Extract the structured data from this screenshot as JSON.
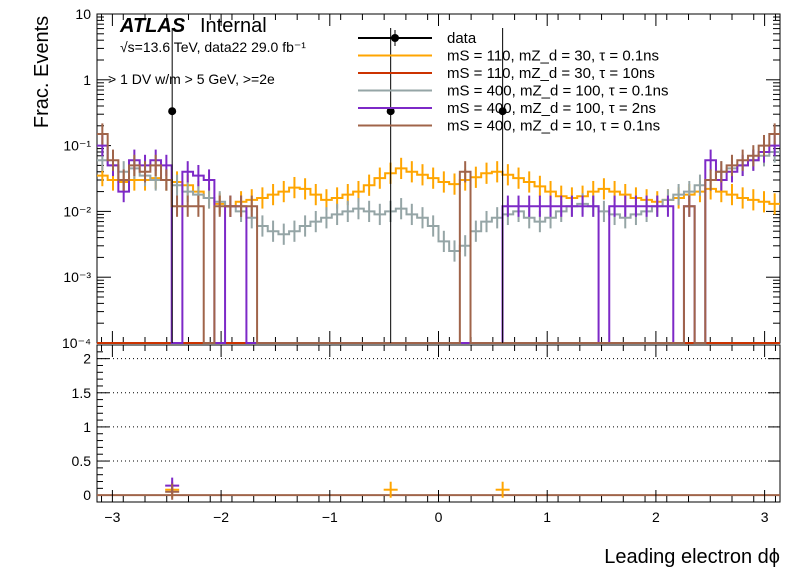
{
  "figure": {
    "brand_bold": "ATLAS",
    "brand_rest": "Internal",
    "energy_line": "√s=13.6 TeV, data22 29.0 fb⁻¹",
    "selection": "> 1 DV w/m > 5 GeV, >=2e",
    "ylabel": "Frac. Events",
    "xlabel": "Leading electron dϕ"
  },
  "legend": [
    {
      "label": "data",
      "color": "#000000",
      "marker": "dot"
    },
    {
      "label": "mS = 110, mZ_d = 30, τ = 0.1ns",
      "color": "#ffa500",
      "marker": "line"
    },
    {
      "label": "mS = 110, mZ_d = 30, τ = 10ns",
      "color": "#cc3300",
      "marker": "line"
    },
    {
      "label": "mS = 400, mZ_d = 100, τ = 0.1ns",
      "color": "#95a5a6",
      "marker": "line"
    },
    {
      "label": "mS = 400, mZ_d = 100, τ = 2ns",
      "color": "#7d29c7",
      "marker": "line"
    },
    {
      "label": "mS = 400, mZ_d = 10, τ = 0.1ns",
      "color": "#a0644a",
      "marker": "line"
    }
  ],
  "chart_data": [
    {
      "type": "line",
      "panel": "main",
      "xlim": [
        -3.14159,
        3.14159
      ],
      "ylim": [
        0.0001,
        10
      ],
      "yscale": "log",
      "ylabel": "Frac. Events",
      "y_ticks": [
        "10⁻⁴",
        "10⁻³",
        "10⁻²",
        "10⁻¹",
        "1",
        "10"
      ],
      "bins": 64,
      "data_points": [
        {
          "x": -2.45,
          "y": 0.333
        },
        {
          "x": -0.44,
          "y": 0.333
        },
        {
          "x": 0.59,
          "y": 0.333
        }
      ],
      "series": [
        {
          "name": "mS = 110, mZ_d = 30, τ = 0.1ns",
          "color": "#ffa500",
          "values": [
            0.035,
            0.03,
            0.028,
            0.03,
            0.03,
            0.032,
            0.03,
            0.028,
            0.025,
            0.02,
            0.016,
            0.013,
            0.012,
            0.014,
            0.015,
            0.016,
            0.018,
            0.02,
            0.023,
            0.022,
            0.018,
            0.015,
            0.016,
            0.018,
            0.02,
            0.025,
            0.032,
            0.038,
            0.045,
            0.04,
            0.036,
            0.032,
            0.028,
            0.026,
            0.03,
            0.033,
            0.038,
            0.04,
            0.036,
            0.032,
            0.028,
            0.024,
            0.02,
            0.017,
            0.016,
            0.017,
            0.02,
            0.022,
            0.02,
            0.018,
            0.016,
            0.015,
            0.014,
            0.015,
            0.016,
            0.018,
            0.02,
            0.022,
            0.02,
            0.018,
            0.016,
            0.015,
            0.014,
            0.013
          ]
        },
        {
          "name": "mS = 110, mZ_d = 30, τ = 10ns",
          "color": "#cc3300",
          "values": [
            0.0001,
            0.0001,
            0.0001,
            0.0001,
            0.0001,
            0.0001,
            0.0001,
            0.0001,
            0.0001,
            0.0001,
            0.0001,
            0.0001,
            0.0001,
            0.0001,
            0.0001,
            0.0001,
            0.0001,
            0.0001,
            0.0001,
            0.0001,
            0.0001,
            0.0001,
            0.0001,
            0.0001,
            0.0001,
            0.0001,
            0.0001,
            0.0001,
            0.0001,
            0.0001,
            0.0001,
            0.0001,
            0.0001,
            0.0001,
            0.0001,
            0.0001,
            0.0001,
            0.0001,
            0.0001,
            0.0001,
            0.0001,
            0.0001,
            0.0001,
            0.0001,
            0.0001,
            0.0001,
            0.0001,
            0.0001,
            0.0001,
            0.0001,
            0.0001,
            0.0001,
            0.0001,
            0.0001,
            0.0001,
            0.0001,
            0.0001,
            0.0001,
            0.0001,
            0.0001,
            0.0001,
            0.0001,
            0.0001,
            0.0001
          ]
        },
        {
          "name": "mS = 400, mZ_d = 100, τ = 0.1ns",
          "color": "#95a5a6",
          "values": [
            0.06,
            0.05,
            0.04,
            0.045,
            0.035,
            0.03,
            0.03,
            0.025,
            0.02,
            0.018,
            0.016,
            0.014,
            0.012,
            0.01,
            0.008,
            0.006,
            0.005,
            0.0045,
            0.005,
            0.006,
            0.007,
            0.008,
            0.009,
            0.01,
            0.011,
            0.01,
            0.009,
            0.01,
            0.011,
            0.009,
            0.008,
            0.006,
            0.0035,
            0.0025,
            0.003,
            0.005,
            0.007,
            0.008,
            0.009,
            0.01,
            0.008,
            0.007,
            0.008,
            0.01,
            0.012,
            0.013,
            0.012,
            0.01,
            0.009,
            0.008,
            0.009,
            0.01,
            0.012,
            0.015,
            0.018,
            0.02,
            0.025,
            0.03,
            0.04,
            0.045,
            0.05,
            0.06,
            0.07,
            0.08
          ]
        },
        {
          "name": "mS = 400, mZ_d = 100, τ = 2ns",
          "color": "#7d29c7",
          "values": [
            0.1,
            0.05,
            0.02,
            0.06,
            0.05,
            0.06,
            0.05,
            0.0001,
            0.04,
            0.035,
            0.03,
            0.0001,
            0.012,
            0.012,
            0.0001,
            0.0001,
            0.0001,
            0.0001,
            0.0001,
            0.0001,
            0.0001,
            0.0001,
            0.0001,
            0.0001,
            0.0001,
            0.0001,
            0.0001,
            0.0001,
            0.0001,
            0.0001,
            0.0001,
            0.0001,
            0.0001,
            0.0001,
            0.0001,
            0.0001,
            0.0001,
            0.0001,
            0.012,
            0.012,
            0.012,
            0.012,
            0.012,
            0.012,
            0.012,
            0.012,
            0.012,
            0.0001,
            0.012,
            0.012,
            0.012,
            0.012,
            0.012,
            0.012,
            0.0001,
            0.012,
            0.0001,
            0.06,
            0.03,
            0.04,
            0.05,
            0.06,
            0.08,
            0.1
          ]
        },
        {
          "name": "mS = 400, mZ_d = 10, τ = 0.1ns",
          "color": "#a0644a",
          "values": [
            0.15,
            0.06,
            0.03,
            0.05,
            0.04,
            0.05,
            0.03,
            0.012,
            0.012,
            0.012,
            0.0001,
            0.012,
            0.012,
            0.012,
            0.012,
            0.0001,
            0.0001,
            0.0001,
            0.0001,
            0.0001,
            0.0001,
            0.0001,
            0.0001,
            0.0001,
            0.0001,
            0.0001,
            0.0001,
            0.0001,
            0.0001,
            0.0001,
            0.0001,
            0.0001,
            0.0001,
            0.0001,
            0.04,
            0.0001,
            0.0001,
            0.0001,
            0.0001,
            0.0001,
            0.0001,
            0.0001,
            0.0001,
            0.0001,
            0.0001,
            0.0001,
            0.0001,
            0.0001,
            0.0001,
            0.0001,
            0.0001,
            0.0001,
            0.0001,
            0.0001,
            0.0001,
            0.012,
            0.0001,
            0.03,
            0.04,
            0.05,
            0.06,
            0.07,
            0.1,
            0.15
          ]
        }
      ]
    },
    {
      "type": "line",
      "panel": "ratio",
      "xlim": [
        -3.14159,
        3.14159
      ],
      "ylim": [
        -0.1,
        2.2
      ],
      "y_ticks": [
        "0",
        "0.5",
        "1",
        "1.5",
        "2"
      ],
      "x_ticks": [
        "−3",
        "−2",
        "−1",
        "0",
        "1",
        "2",
        "3"
      ],
      "xlabel": "Leading electron dϕ",
      "markers": [
        {
          "x": -2.45,
          "y": 0.08,
          "color": "#ffa500"
        },
        {
          "x": -2.45,
          "y": 0.14,
          "color": "#7d29c7"
        },
        {
          "x": -2.45,
          "y": 0.05,
          "color": "#a0644a"
        },
        {
          "x": -0.44,
          "y": 0.08,
          "color": "#ffa500"
        },
        {
          "x": 0.59,
          "y": 0.08,
          "color": "#ffa500"
        }
      ],
      "baseline": 0
    }
  ]
}
